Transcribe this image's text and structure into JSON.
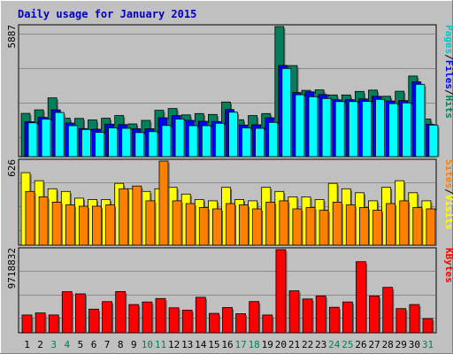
{
  "chart_data": [
    {
      "type": "bar",
      "title": "Daily usage for January 2015",
      "categories": [
        "1",
        "2",
        "3",
        "4",
        "5",
        "6",
        "7",
        "8",
        "9",
        "10",
        "11",
        "12",
        "13",
        "14",
        "15",
        "16",
        "17",
        "18",
        "19",
        "20",
        "21",
        "22",
        "23",
        "24",
        "25",
        "26",
        "27",
        "28",
        "29",
        "30",
        "31"
      ],
      "weekend_days": [
        "3",
        "4",
        "10",
        "11",
        "17",
        "18",
        "24",
        "25",
        "31"
      ],
      "ymax_label": "5887",
      "ylim": [
        0,
        5887
      ],
      "right_labels": [
        "Pages",
        "Files",
        "Hits"
      ],
      "series": [
        {
          "name": "Hits",
          "color": "#00805c",
          "values": [
            1960,
            2120,
            2660,
            1740,
            1730,
            1660,
            1740,
            1860,
            1480,
            1640,
            2100,
            2180,
            1890,
            1950,
            1910,
            2470,
            1670,
            1860,
            1950,
            5887,
            4120,
            3000,
            3020,
            2790,
            2790,
            2950,
            3010,
            2730,
            2960,
            3650,
            1700
          ]
        },
        {
          "name": "Files",
          "color": "#0000ff",
          "values": [
            1580,
            1780,
            2120,
            1520,
            1270,
            1240,
            1470,
            1450,
            1260,
            1260,
            1760,
            1860,
            1640,
            1600,
            1590,
            2130,
            1430,
            1440,
            1760,
            4130,
            2900,
            2930,
            2810,
            2570,
            2580,
            2610,
            2730,
            2520,
            2540,
            3390,
            1460
          ]
        },
        {
          "name": "Pages",
          "color": "#00ffff",
          "values": [
            1530,
            1700,
            2000,
            1400,
            1230,
            1100,
            1300,
            1280,
            1090,
            1130,
            1410,
            1700,
            1400,
            1400,
            1510,
            2010,
            1300,
            1280,
            1550,
            3990,
            2800,
            2710,
            2630,
            2490,
            2490,
            2500,
            2590,
            2400,
            2430,
            3270,
            1430
          ]
        }
      ]
    },
    {
      "type": "bar",
      "ymax_label": "626",
      "ylim": [
        0,
        626
      ],
      "right_labels": [
        "Sites",
        "Visits"
      ],
      "series": [
        {
          "name": "Visits",
          "color": "#ffff00",
          "values": [
            540,
            480,
            420,
            400,
            350,
            340,
            340,
            460,
            420,
            400,
            420,
            430,
            380,
            340,
            330,
            430,
            340,
            330,
            430,
            400,
            360,
            360,
            340,
            460,
            420,
            390,
            330,
            430,
            480,
            390,
            330
          ]
        },
        {
          "name": "Sites",
          "color": "#ff8000",
          "values": [
            400,
            360,
            320,
            300,
            290,
            290,
            300,
            420,
            440,
            330,
            626,
            330,
            310,
            280,
            270,
            310,
            300,
            270,
            320,
            330,
            270,
            280,
            260,
            320,
            300,
            280,
            260,
            310,
            330,
            280,
            270
          ]
        }
      ]
    },
    {
      "type": "bar",
      "ymax_label": "9718832",
      "ylim": [
        0,
        9718832
      ],
      "right_labels": [
        "KBytes"
      ],
      "series": [
        {
          "name": "KBytes",
          "color": "#ff0000",
          "values": [
            2080000,
            2320000,
            2080000,
            4800000,
            4550000,
            2760000,
            3640000,
            4820000,
            3300000,
            3600000,
            4000000,
            2920000,
            2640000,
            4150000,
            2260000,
            2950000,
            2220000,
            3650000,
            2080000,
            9718832,
            4900000,
            3950000,
            4300000,
            2980000,
            3600000,
            8300000,
            4300000,
            5300000,
            2820000,
            3300000,
            1650000
          ]
        }
      ]
    }
  ]
}
